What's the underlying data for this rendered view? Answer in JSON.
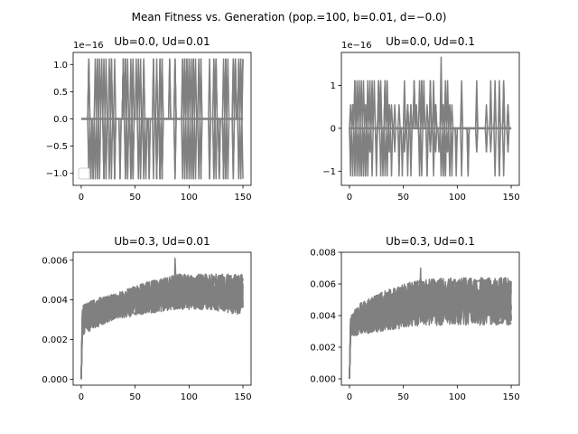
{
  "figure": {
    "suptitle": "Mean Fitness vs. Generation (pop.=100, b=0.01, d=−0.0)"
  },
  "chart_data": [
    {
      "type": "line",
      "title": "Ub=0.0, Ud=0.01",
      "xlabel": "",
      "ylabel": "",
      "offset_text": "1e−16",
      "xlim": [
        -7.5,
        157.5
      ],
      "ylim": [
        -1.22,
        1.22
      ],
      "xticks": [
        0,
        50,
        100,
        150
      ],
      "xtick_labels": [
        "0",
        "50",
        "100",
        "150"
      ],
      "yticks": [
        -1.0,
        -0.5,
        0.0,
        0.5,
        1.0
      ],
      "ytick_labels": [
        "−1.0",
        "−0.5",
        "0.0",
        "0.5",
        "1.0"
      ],
      "legend": "lower-left, empty",
      "color": "#808080",
      "series_count": 100,
      "generations": 151,
      "pattern": "spikes",
      "baseline": 0.0,
      "spike_levels": [
        1.1,
        -1.1
      ],
      "spike_generations": [
        7,
        9,
        11,
        13,
        15,
        17,
        19,
        21,
        23,
        26,
        28,
        31,
        36,
        39,
        41,
        43,
        46,
        48,
        51,
        53,
        55,
        58,
        60,
        63,
        67,
        70,
        73,
        75,
        82,
        87,
        94,
        96,
        98,
        100,
        102,
        104,
        106,
        109,
        111,
        119,
        123,
        125,
        128,
        132,
        134,
        136,
        141,
        143,
        146,
        148,
        150
      ]
    },
    {
      "type": "line",
      "title": "Ub=0.0, Ud=0.1",
      "xlabel": "",
      "ylabel": "",
      "offset_text": "1e−16",
      "xlim": [
        -7.5,
        157.5
      ],
      "ylim": [
        -1.33,
        1.77
      ],
      "xticks": [
        0,
        50,
        100,
        150
      ],
      "xtick_labels": [
        "0",
        "50",
        "100",
        "150"
      ],
      "yticks": [
        -1,
        0,
        1
      ],
      "ytick_labels": [
        "−1",
        "0",
        "1"
      ],
      "color": "#808080",
      "series_count": 100,
      "generations": 151,
      "pattern": "spikes",
      "baseline": 0.0,
      "spike_levels": [
        1.11,
        0.55,
        -0.55,
        -1.11
      ],
      "peak_value": 1.66,
      "peak_generation": 85,
      "spike_generations": [
        1,
        3,
        5,
        7,
        9,
        11,
        13,
        15,
        17,
        19,
        21,
        23,
        25,
        27,
        29,
        31,
        33,
        35,
        37,
        39,
        42,
        46,
        49,
        51,
        54,
        57,
        60,
        62,
        65,
        67,
        69,
        72,
        75,
        78,
        80,
        83,
        85,
        87,
        89,
        91,
        93,
        95,
        99,
        104,
        110,
        118,
        127,
        131,
        135,
        139,
        143,
        147
      ]
    },
    {
      "type": "line",
      "title": "Ub=0.3, Ud=0.01",
      "xlabel": "",
      "ylabel": "",
      "xlim": [
        -7.5,
        157.5
      ],
      "ylim": [
        -0.0003,
        0.0064
      ],
      "xticks": [
        0,
        50,
        100,
        150
      ],
      "xtick_labels": [
        "0",
        "50",
        "100",
        "150"
      ],
      "yticks": [
        0.0,
        0.002,
        0.004,
        0.006
      ],
      "ytick_labels": [
        "0.000",
        "0.002",
        "0.004",
        "0.006"
      ],
      "color": "#808080",
      "series_count": 100,
      "generations": 151,
      "pattern": "noisy-rise",
      "envelope_x": [
        0,
        1,
        10,
        30,
        60,
        90,
        120,
        150
      ],
      "envelope_upper": [
        0.0,
        0.0037,
        0.004,
        0.0043,
        0.0049,
        0.0053,
        0.0053,
        0.0053
      ],
      "envelope_lower": [
        0.0,
        0.0022,
        0.0025,
        0.003,
        0.0033,
        0.0035,
        0.0035,
        0.0032
      ],
      "peak_value": 0.0061,
      "peak_generation": 87
    },
    {
      "type": "line",
      "title": "Ub=0.3, Ud=0.1",
      "xlabel": "",
      "ylabel": "",
      "xlim": [
        -7.5,
        157.5
      ],
      "ylim": [
        -0.0004,
        0.008
      ],
      "xticks": [
        0,
        50,
        100,
        150
      ],
      "xtick_labels": [
        "0",
        "50",
        "100",
        "150"
      ],
      "yticks": [
        0.0,
        0.002,
        0.004,
        0.006,
        0.008
      ],
      "ytick_labels": [
        "0.000",
        "0.002",
        "0.004",
        "0.006",
        "0.008"
      ],
      "color": "#808080",
      "series_count": 100,
      "generations": 151,
      "pattern": "noisy-rise",
      "envelope_x": [
        0,
        1,
        10,
        30,
        60,
        90,
        120,
        150
      ],
      "envelope_upper": [
        0.0,
        0.004,
        0.0048,
        0.0055,
        0.0062,
        0.0064,
        0.0064,
        0.0064
      ],
      "envelope_lower": [
        0.0,
        0.0026,
        0.0028,
        0.003,
        0.0033,
        0.0034,
        0.0034,
        0.0034
      ],
      "peak_value": 0.007,
      "peak_generation": 66
    }
  ]
}
